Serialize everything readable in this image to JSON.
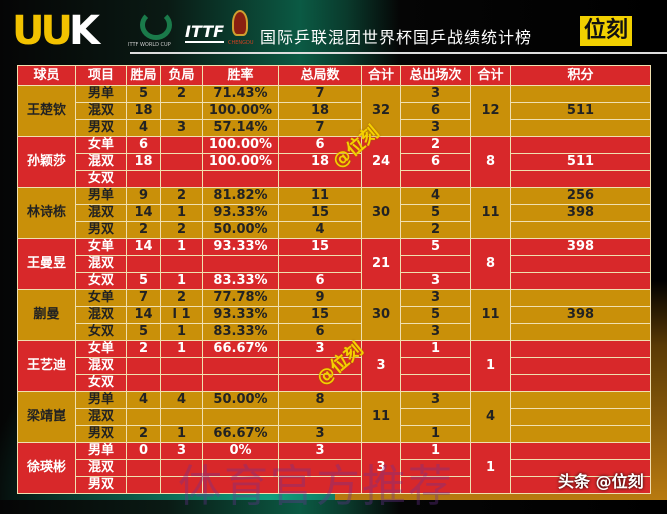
{
  "header": {
    "logo": "UUK",
    "worldcup_logo": "ITTF WORLD CUP",
    "ittf_logo": "ITTF",
    "chengdu_logo": "CHENGDU",
    "title": "国际乒联混团世界杯国乒战绩统计榜",
    "brand": "位刻"
  },
  "colors": {
    "gold": "#c99009",
    "red": "#d8282a",
    "brand_yellow": "#f2d000"
  },
  "columns": [
    "球员",
    "项目",
    "胜局",
    "负局",
    "胜率",
    "总局数",
    "合计",
    "总出场次",
    "合计",
    "积分"
  ],
  "players": [
    {
      "name": "王楚钦",
      "color": "gold",
      "total_games": "32",
      "total_apps": "12",
      "rows": [
        [
          "男单",
          "5",
          "2",
          "71.43%",
          "7",
          "3",
          ""
        ],
        [
          "混双",
          "18",
          "",
          "100.00%",
          "18",
          "6",
          "511"
        ],
        [
          "男双",
          "4",
          "3",
          "57.14%",
          "7",
          "3",
          ""
        ]
      ]
    },
    {
      "name": "孙颖莎",
      "color": "red",
      "total_games": "24",
      "total_apps": "8",
      "rows": [
        [
          "女单",
          "6",
          "",
          "100.00%",
          "6",
          "2",
          ""
        ],
        [
          "混双",
          "18",
          "",
          "100.00%",
          "18",
          "6",
          "511"
        ],
        [
          "女双",
          "",
          "",
          "",
          "",
          "",
          ""
        ]
      ]
    },
    {
      "name": "林诗栋",
      "color": "gold",
      "total_games": "30",
      "total_apps": "11",
      "rows": [
        [
          "男单",
          "9",
          "2",
          "81.82%",
          "11",
          "4",
          "256"
        ],
        [
          "混双",
          "14",
          "1",
          "93.33%",
          "15",
          "5",
          "398"
        ],
        [
          "男双",
          "2",
          "2",
          "50.00%",
          "4",
          "2",
          ""
        ]
      ]
    },
    {
      "name": "王曼昱",
      "color": "red",
      "total_games": "21",
      "total_apps": "8",
      "rows": [
        [
          "女单",
          "14",
          "1",
          "93.33%",
          "15",
          "5",
          "398"
        ],
        [
          "混双",
          "",
          "",
          "",
          "",
          "",
          ""
        ],
        [
          "女双",
          "5",
          "1",
          "83.33%",
          "6",
          "3",
          ""
        ]
      ]
    },
    {
      "name": "蒯曼",
      "color": "gold",
      "total_games": "30",
      "total_apps": "11",
      "rows": [
        [
          "女单",
          "7",
          "2",
          "77.78%",
          "9",
          "3",
          ""
        ],
        [
          "混双",
          "14",
          "l 1",
          "93.33%",
          "15",
          "5",
          "398"
        ],
        [
          "女双",
          "5",
          "1",
          "83.33%",
          "6",
          "3",
          ""
        ]
      ]
    },
    {
      "name": "王艺迪",
      "color": "red",
      "total_games": "3",
      "total_apps": "1",
      "rows": [
        [
          "女单",
          "2",
          "1",
          "66.67%",
          "3",
          "1",
          ""
        ],
        [
          "混双",
          "",
          "",
          "",
          "",
          "",
          ""
        ],
        [
          "女双",
          "",
          "",
          "",
          "",
          "",
          ""
        ]
      ]
    },
    {
      "name": "梁靖崑",
      "color": "gold",
      "total_games": "11",
      "total_apps": "4",
      "rows": [
        [
          "男单",
          "4",
          "4",
          "50.00%",
          "8",
          "3",
          ""
        ],
        [
          "混双",
          "",
          "",
          "",
          "",
          "",
          ""
        ],
        [
          "男双",
          "2",
          "1",
          "66.67%",
          "3",
          "1",
          ""
        ]
      ]
    },
    {
      "name": "徐瑛彬",
      "color": "red",
      "total_games": "3",
      "total_apps": "1",
      "rows": [
        [
          "男单",
          "0",
          "3",
          "0%",
          "3",
          "1",
          ""
        ],
        [
          "混双",
          "",
          "",
          "",
          "",
          "",
          ""
        ],
        [
          "男双",
          "",
          "",
          "",
          "",
          "",
          ""
        ]
      ]
    }
  ],
  "watermarks": {
    "handle": "@位刻",
    "promo": "体育官方推荐",
    "source": "头条 @位刻"
  }
}
